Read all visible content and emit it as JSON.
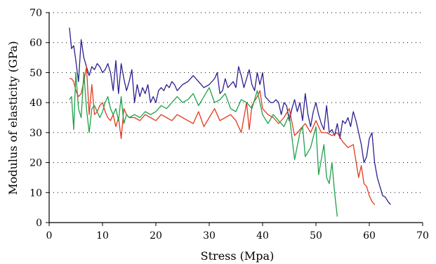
{
  "chart_data": {
    "type": "line",
    "title": "",
    "xlabel": "Stress (Mpa)",
    "ylabel": "Modulus of elasticity (GPa)",
    "xlim": [
      0,
      70
    ],
    "ylim": [
      0,
      70
    ],
    "xticks": [
      0,
      10,
      20,
      30,
      40,
      50,
      60,
      70
    ],
    "yticks": [
      0,
      10,
      20,
      30,
      40,
      50,
      60,
      70
    ],
    "grid": "dotted-horizontal",
    "legend": "none",
    "series": [
      {
        "color": "#2a1f8f",
        "points": [
          [
            3.8,
            65
          ],
          [
            4.2,
            58
          ],
          [
            4.6,
            59
          ],
          [
            5.0,
            54
          ],
          [
            5.5,
            47
          ],
          [
            6.0,
            61
          ],
          [
            6.5,
            55
          ],
          [
            7.0,
            52
          ],
          [
            7.5,
            49
          ],
          [
            8.0,
            52
          ],
          [
            8.5,
            51
          ],
          [
            9.0,
            53
          ],
          [
            9.5,
            52
          ],
          [
            10.0,
            50
          ],
          [
            10.5,
            51
          ],
          [
            11.0,
            53
          ],
          [
            11.5,
            50
          ],
          [
            12.0,
            44
          ],
          [
            12.5,
            54
          ],
          [
            13.0,
            43
          ],
          [
            13.5,
            53
          ],
          [
            14.0,
            48
          ],
          [
            14.5,
            44
          ],
          [
            15.0,
            47
          ],
          [
            15.5,
            51
          ],
          [
            16.0,
            40
          ],
          [
            16.5,
            46
          ],
          [
            17.0,
            42
          ],
          [
            17.5,
            45
          ],
          [
            18.0,
            43
          ],
          [
            18.5,
            46
          ],
          [
            19.0,
            40
          ],
          [
            19.5,
            42
          ],
          [
            20.0,
            40
          ],
          [
            20.5,
            44
          ],
          [
            21.0,
            45
          ],
          [
            21.5,
            44
          ],
          [
            22.0,
            46
          ],
          [
            22.5,
            45
          ],
          [
            23.0,
            47
          ],
          [
            23.5,
            46
          ],
          [
            24.0,
            44
          ],
          [
            25.0,
            46
          ],
          [
            26.0,
            47
          ],
          [
            27.0,
            49
          ],
          [
            28.0,
            47
          ],
          [
            29.0,
            45
          ],
          [
            30.0,
            46
          ],
          [
            31.0,
            48
          ],
          [
            31.5,
            50
          ],
          [
            32.0,
            43
          ],
          [
            32.5,
            44
          ],
          [
            33.0,
            48
          ],
          [
            33.5,
            45
          ],
          [
            34.0,
            46
          ],
          [
            34.5,
            47
          ],
          [
            35.0,
            45
          ],
          [
            35.5,
            52
          ],
          [
            36.0,
            49
          ],
          [
            36.5,
            45
          ],
          [
            37.0,
            48
          ],
          [
            37.5,
            51
          ],
          [
            38.0,
            46
          ],
          [
            38.5,
            44
          ],
          [
            39.0,
            50
          ],
          [
            39.5,
            46
          ],
          [
            40.0,
            50
          ],
          [
            40.5,
            42
          ],
          [
            41.0,
            41
          ],
          [
            41.5,
            40
          ],
          [
            42.0,
            40
          ],
          [
            42.5,
            41
          ],
          [
            43.0,
            40
          ],
          [
            43.5,
            36
          ],
          [
            44.0,
            40
          ],
          [
            44.5,
            39
          ],
          [
            45.0,
            34
          ],
          [
            45.5,
            38
          ],
          [
            46.0,
            41
          ],
          [
            46.5,
            37
          ],
          [
            47.0,
            40
          ],
          [
            47.5,
            34
          ],
          [
            48.0,
            43
          ],
          [
            48.5,
            36
          ],
          [
            49.0,
            32
          ],
          [
            49.5,
            37
          ],
          [
            50.0,
            40
          ],
          [
            50.5,
            36
          ],
          [
            51.0,
            33
          ],
          [
            51.5,
            31
          ],
          [
            52.0,
            39
          ],
          [
            52.5,
            30
          ],
          [
            53.0,
            31
          ],
          [
            53.5,
            29
          ],
          [
            54.0,
            33
          ],
          [
            54.5,
            28
          ],
          [
            55.0,
            34
          ],
          [
            55.5,
            33
          ],
          [
            56.0,
            35
          ],
          [
            56.5,
            32
          ],
          [
            57.0,
            37
          ],
          [
            57.5,
            34
          ],
          [
            58.0,
            30
          ],
          [
            58.5,
            26
          ],
          [
            59.0,
            20
          ],
          [
            59.5,
            22
          ],
          [
            60.0,
            28
          ],
          [
            60.5,
            30
          ],
          [
            61.0,
            20
          ],
          [
            61.5,
            15
          ],
          [
            62.0,
            12
          ],
          [
            62.5,
            9
          ],
          [
            63.0,
            8.5
          ],
          [
            63.5,
            7
          ],
          [
            64.0,
            6
          ]
        ]
      },
      {
        "color": "#e23a1e",
        "points": [
          [
            3.8,
            48
          ],
          [
            4.2,
            48
          ],
          [
            4.6,
            47
          ],
          [
            5.0,
            44
          ],
          [
            5.5,
            42
          ],
          [
            6.0,
            43
          ],
          [
            6.5,
            47
          ],
          [
            7.0,
            52
          ],
          [
            7.5,
            36
          ],
          [
            8.0,
            46
          ],
          [
            8.5,
            36
          ],
          [
            9.0,
            37
          ],
          [
            9.5,
            39
          ],
          [
            10.0,
            40
          ],
          [
            10.5,
            37
          ],
          [
            11.0,
            35
          ],
          [
            11.5,
            34
          ],
          [
            12.0,
            36
          ],
          [
            12.5,
            32
          ],
          [
            13.0,
            35
          ],
          [
            13.5,
            28
          ],
          [
            14.0,
            38
          ],
          [
            14.5,
            36
          ],
          [
            15.0,
            35
          ],
          [
            16.0,
            35
          ],
          [
            17.0,
            34
          ],
          [
            18.0,
            36
          ],
          [
            19.0,
            35
          ],
          [
            20.0,
            34
          ],
          [
            21.0,
            36
          ],
          [
            22.0,
            35
          ],
          [
            23.0,
            34
          ],
          [
            24.0,
            36
          ],
          [
            25.0,
            35
          ],
          [
            26.0,
            34
          ],
          [
            27.0,
            33
          ],
          [
            28.0,
            37
          ],
          [
            29.0,
            32
          ],
          [
            30.0,
            35
          ],
          [
            31.0,
            38
          ],
          [
            32.0,
            34
          ],
          [
            33.0,
            35
          ],
          [
            34.0,
            36
          ],
          [
            35.0,
            34
          ],
          [
            36.0,
            30
          ],
          [
            37.0,
            40
          ],
          [
            37.5,
            31
          ],
          [
            38.0,
            39
          ],
          [
            39.0,
            42
          ],
          [
            39.5,
            44
          ],
          [
            40.0,
            38
          ],
          [
            41.0,
            36
          ],
          [
            42.0,
            35
          ],
          [
            43.0,
            33
          ],
          [
            44.0,
            35
          ],
          [
            45.0,
            38
          ],
          [
            46.0,
            29
          ],
          [
            47.0,
            31
          ],
          [
            48.0,
            33
          ],
          [
            49.0,
            30
          ],
          [
            50.0,
            34
          ],
          [
            51.0,
            30
          ],
          [
            52.0,
            30
          ],
          [
            53.0,
            29
          ],
          [
            54.0,
            30
          ],
          [
            55.0,
            27
          ],
          [
            56.0,
            25
          ],
          [
            57.0,
            26
          ],
          [
            58.0,
            15
          ],
          [
            58.5,
            19
          ],
          [
            59.0,
            13
          ],
          [
            59.5,
            12
          ],
          [
            60.0,
            9
          ],
          [
            60.5,
            7
          ],
          [
            61.0,
            6
          ]
        ]
      },
      {
        "color": "#1fa14a",
        "points": [
          [
            3.8,
            41
          ],
          [
            4.2,
            42
          ],
          [
            4.6,
            31
          ],
          [
            5.0,
            50
          ],
          [
            5.5,
            38
          ],
          [
            6.0,
            35
          ],
          [
            6.5,
            50
          ],
          [
            7.0,
            38
          ],
          [
            7.5,
            30
          ],
          [
            8.0,
            38
          ],
          [
            8.5,
            39
          ],
          [
            9.0,
            37
          ],
          [
            9.5,
            35
          ],
          [
            10.0,
            37
          ],
          [
            10.5,
            40
          ],
          [
            11.0,
            42
          ],
          [
            11.5,
            38
          ],
          [
            12.0,
            36
          ],
          [
            12.5,
            38
          ],
          [
            13.0,
            34
          ],
          [
            13.5,
            42
          ],
          [
            14.0,
            33
          ],
          [
            14.5,
            36
          ],
          [
            15.0,
            35
          ],
          [
            16.0,
            36
          ],
          [
            17.0,
            35
          ],
          [
            18.0,
            37
          ],
          [
            19.0,
            36
          ],
          [
            20.0,
            37
          ],
          [
            21.0,
            39
          ],
          [
            22.0,
            38
          ],
          [
            23.0,
            40
          ],
          [
            24.0,
            42
          ],
          [
            25.0,
            40
          ],
          [
            26.0,
            41
          ],
          [
            27.0,
            43
          ],
          [
            28.0,
            39
          ],
          [
            29.0,
            42
          ],
          [
            30.0,
            45
          ],
          [
            31.0,
            40
          ],
          [
            32.0,
            41
          ],
          [
            33.0,
            43
          ],
          [
            34.0,
            38
          ],
          [
            35.0,
            37
          ],
          [
            36.0,
            41
          ],
          [
            37.0,
            40
          ],
          [
            38.0,
            38
          ],
          [
            39.0,
            44
          ],
          [
            40.0,
            36
          ],
          [
            41.0,
            33
          ],
          [
            42.0,
            36
          ],
          [
            43.0,
            34
          ],
          [
            44.0,
            32
          ],
          [
            45.0,
            36
          ],
          [
            46.0,
            21
          ],
          [
            47.0,
            30
          ],
          [
            47.5,
            32
          ],
          [
            48.0,
            22
          ],
          [
            49.0,
            25
          ],
          [
            50.0,
            32
          ],
          [
            50.5,
            16
          ],
          [
            51.0,
            21
          ],
          [
            51.5,
            26
          ],
          [
            52.0,
            15
          ],
          [
            52.5,
            13
          ],
          [
            53.0,
            20
          ],
          [
            53.5,
            10
          ],
          [
            54.0,
            2
          ]
        ]
      }
    ]
  }
}
